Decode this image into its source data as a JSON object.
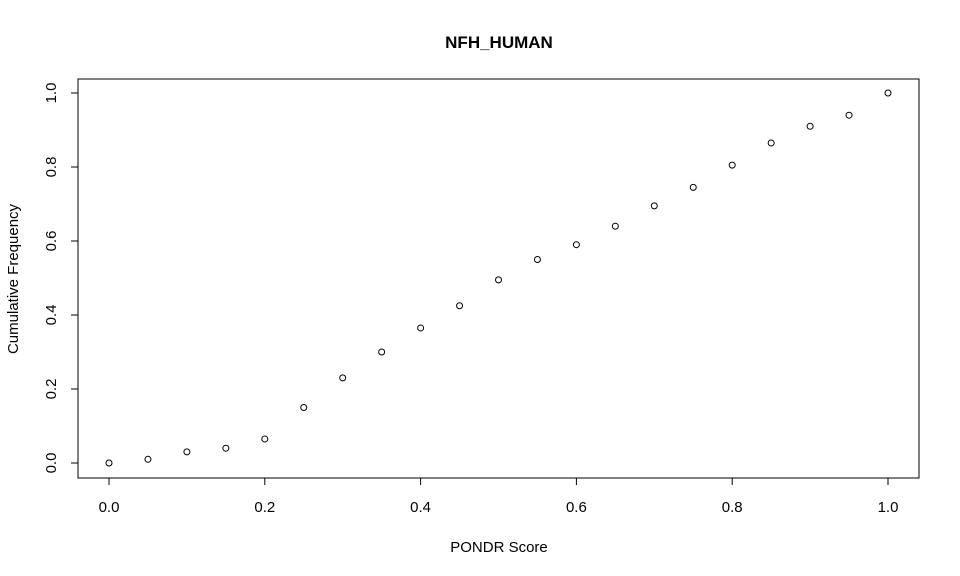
{
  "chart_data": {
    "type": "scatter",
    "title": "NFH_HUMAN",
    "xlabel": "PONDR Score",
    "ylabel": "Cumulative Frequency",
    "xlim": [
      0.0,
      1.0
    ],
    "ylim": [
      0.0,
      1.0
    ],
    "xticks": [
      0.0,
      0.2,
      0.4,
      0.6,
      0.8,
      1.0
    ],
    "xtick_labels": [
      "0.0",
      "0.2",
      "0.4",
      "0.6",
      "0.8",
      "1.0"
    ],
    "yticks": [
      0.0,
      0.2,
      0.4,
      0.6,
      0.8,
      1.0
    ],
    "ytick_labels": [
      "0.0",
      "0.2",
      "0.4",
      "0.6",
      "0.8",
      "1.0"
    ],
    "grid": false,
    "marker": "open-circle",
    "x": [
      0.0,
      0.05,
      0.1,
      0.15,
      0.2,
      0.25,
      0.3,
      0.35,
      0.4,
      0.45,
      0.5,
      0.55,
      0.6,
      0.65,
      0.7,
      0.75,
      0.8,
      0.85,
      0.9,
      0.95,
      1.0
    ],
    "y": [
      0.0,
      0.01,
      0.03,
      0.04,
      0.065,
      0.15,
      0.23,
      0.3,
      0.365,
      0.425,
      0.495,
      0.55,
      0.59,
      0.64,
      0.695,
      0.745,
      0.805,
      0.865,
      0.91,
      0.94,
      1.0
    ]
  }
}
